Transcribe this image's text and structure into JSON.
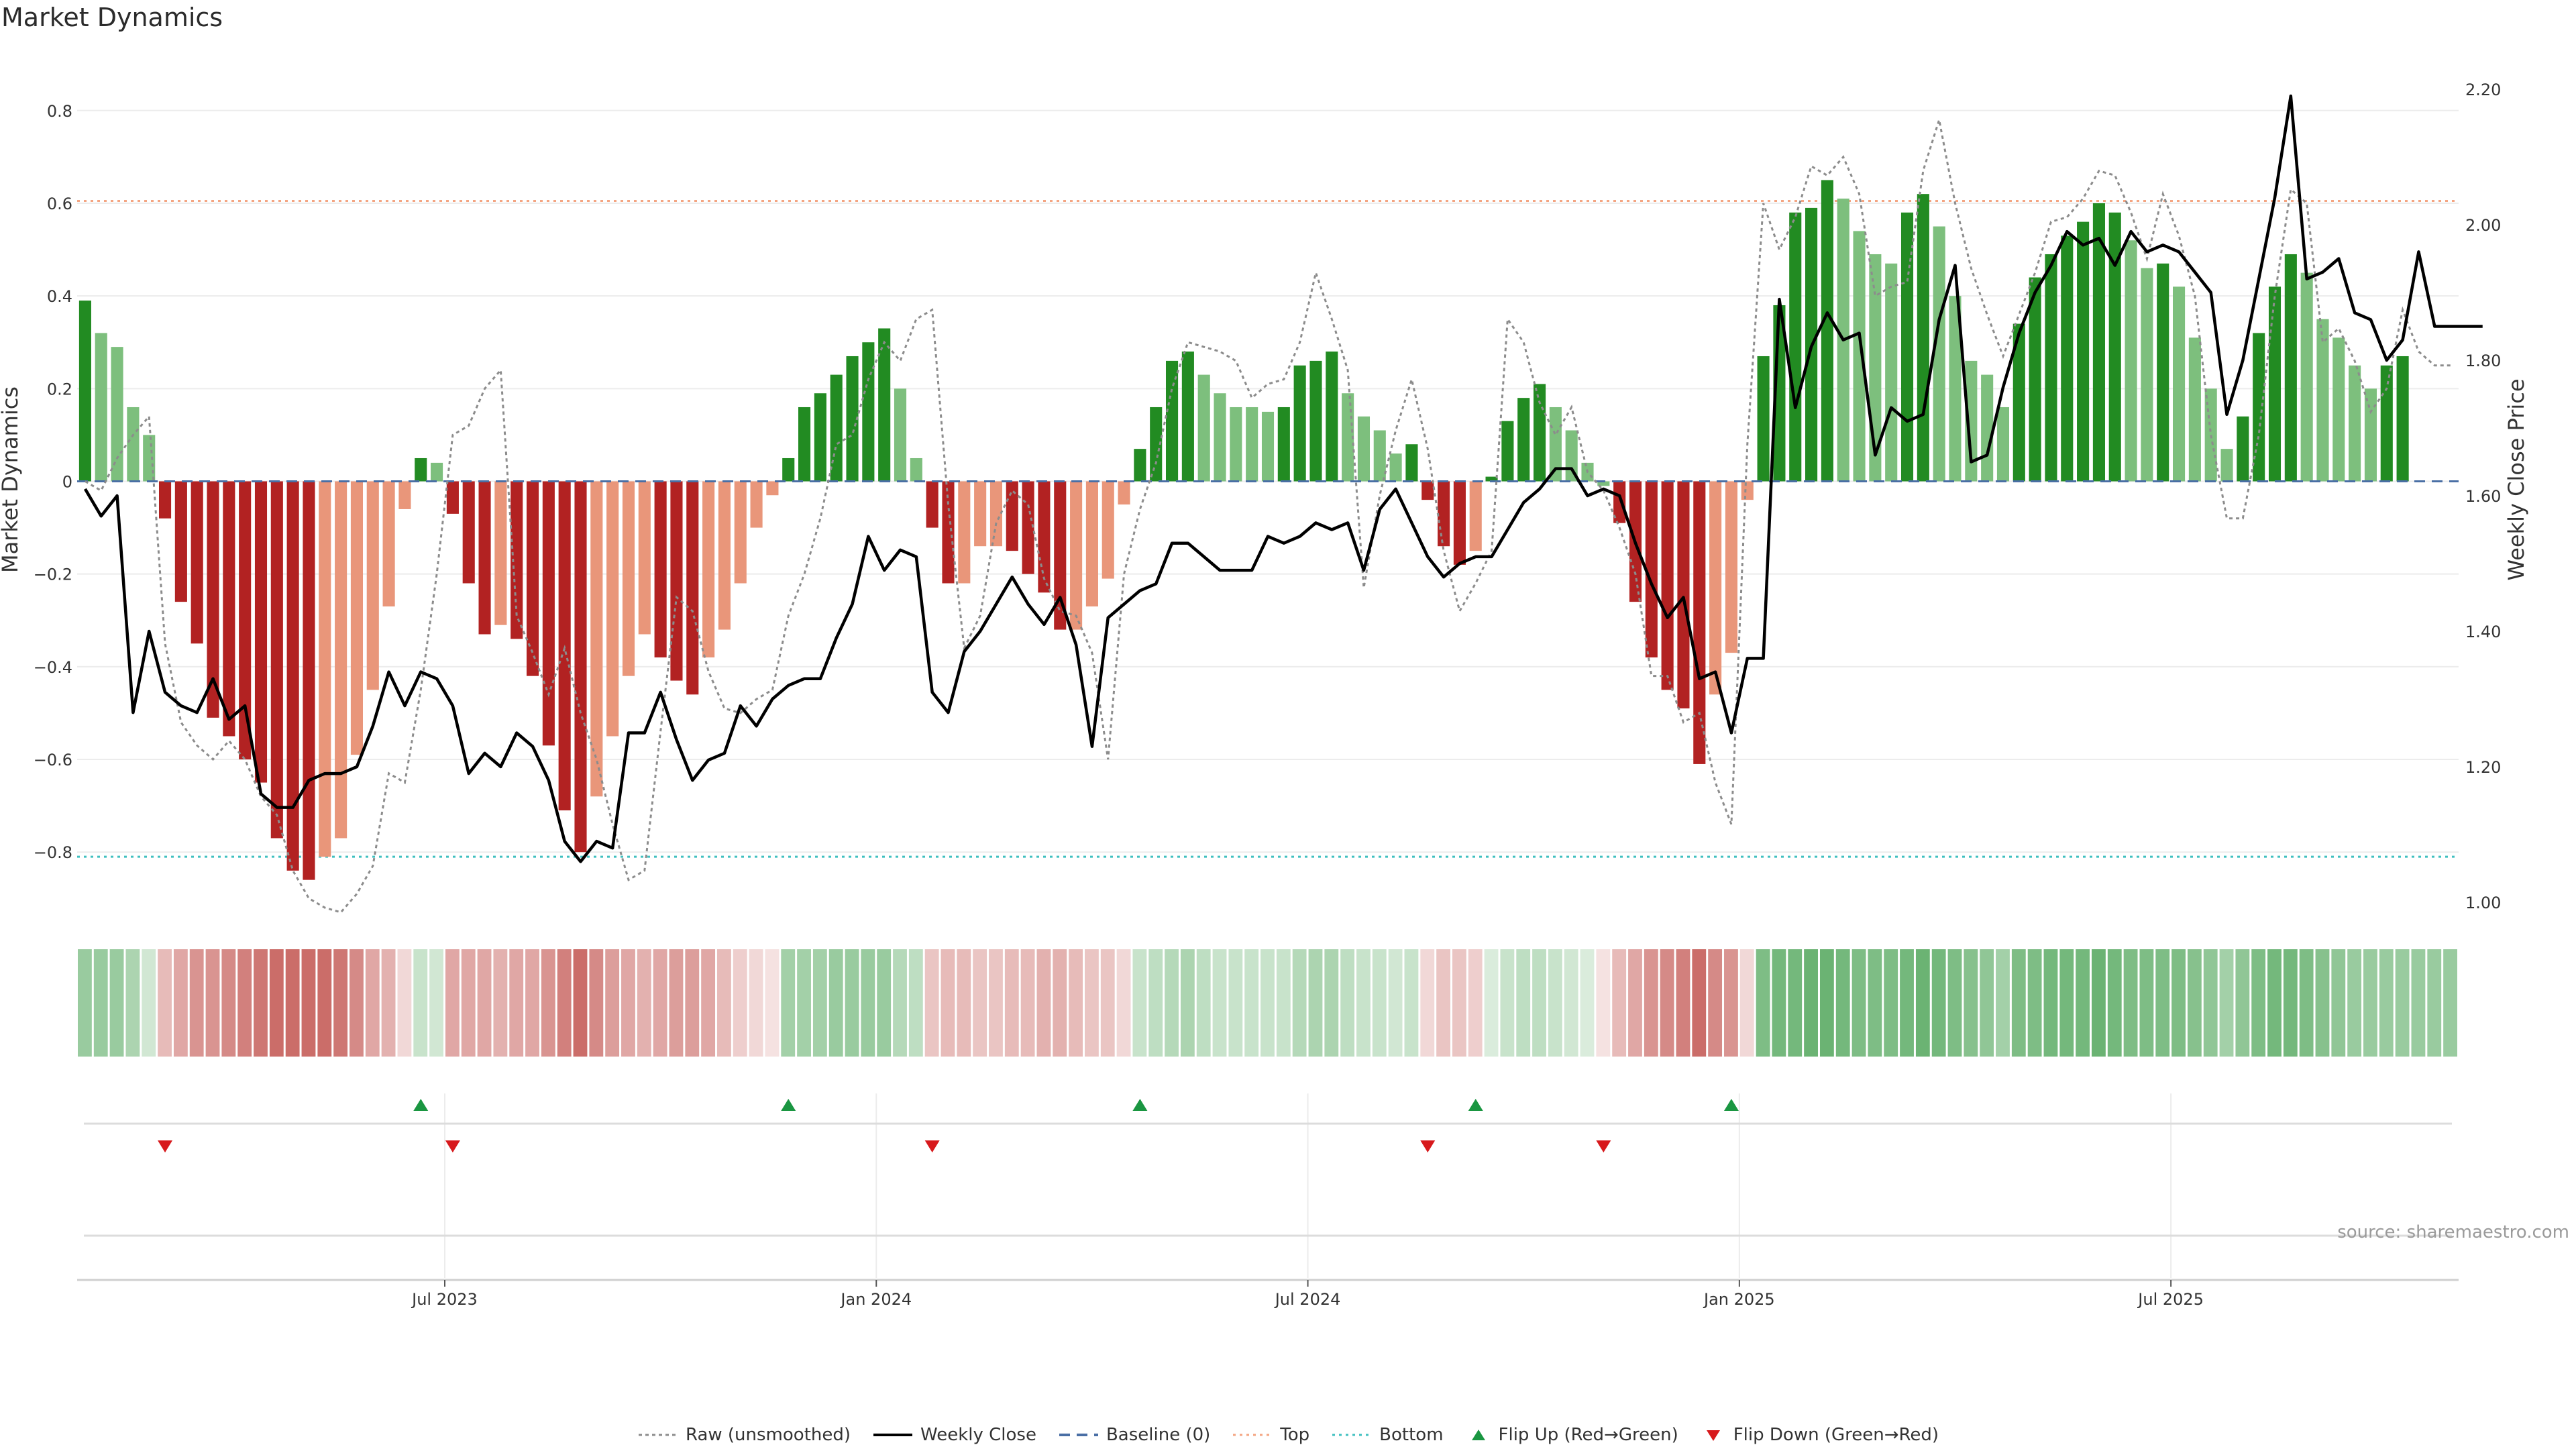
{
  "title": "Market Dynamics",
  "source": "source: sharemaestro.com",
  "colors": {
    "strong_green": "#228b22",
    "light_green": "#7dbf7d",
    "strong_red": "#b22222",
    "light_red": "#e9967a",
    "close_line": "#000000",
    "raw_line": "#8c8c8c",
    "top_line": "#f4a582",
    "bottom_line": "#40c0c0",
    "baseline": "#4a6fa5",
    "flip_up": "#1a9641",
    "flip_down": "#d7191c"
  },
  "legend": [
    {
      "label": "Raw (unsmoothed)",
      "icon": "dotted-gray-line"
    },
    {
      "label": "Weekly Close",
      "icon": "solid-black-line"
    },
    {
      "label": "Baseline (0)",
      "icon": "dashed-blue-line"
    },
    {
      "label": "Top",
      "icon": "dotted-orange-line"
    },
    {
      "label": "Bottom",
      "icon": "dotted-teal-line"
    },
    {
      "label": "Flip Up (Red→Green)",
      "icon": "triangle-up-green"
    },
    {
      "label": "Flip Down (Green→Red)",
      "icon": "triangle-down-red"
    }
  ],
  "chart_data": {
    "type": "bar",
    "title": "Market Dynamics",
    "ylabel": "Market Dynamics",
    "y2label": "Weekly Close Price",
    "ylim": [
      -0.93,
      0.93
    ],
    "y_ticks": [
      0.8,
      0.6,
      0.4,
      0.2,
      0,
      -0.2,
      -0.4,
      -0.6,
      -0.8
    ],
    "y_tick_labels": [
      "0.8",
      "0.6",
      "0.4",
      "0.2",
      "0",
      "−0.2",
      "−0.4",
      "−0.6",
      "−0.8"
    ],
    "y2lim": [
      1.0,
      2.2
    ],
    "y2_ticks": [
      2.2,
      2.0,
      1.8,
      1.6,
      1.4,
      1.2,
      1.0
    ],
    "y2_tick_labels": [
      "2.20",
      "2.00",
      "1.80",
      "1.60",
      "1.40",
      "1.20",
      "1.00"
    ],
    "x_ticks": [
      "Jul 2023",
      "Jan 2024",
      "Jul 2024",
      "Jan 2025",
      "Jul 2025"
    ],
    "x_tick_weeks": [
      22.5,
      49.5,
      76.5,
      103.5,
      130.5
    ],
    "top_level": 0.605,
    "bottom_level": -0.81,
    "baseline": 0,
    "grid": true,
    "legend_position": "bottom-center",
    "weeks": 149,
    "series": [
      {
        "name": "Market Dynamics",
        "values": [
          0.39,
          0.32,
          0.29,
          0.16,
          0.1,
          -0.08,
          -0.26,
          -0.35,
          -0.51,
          -0.55,
          -0.6,
          -0.65,
          -0.77,
          -0.84,
          -0.86,
          -0.81,
          -0.77,
          -0.59,
          -0.45,
          -0.27,
          -0.06,
          0.05,
          0.04,
          -0.07,
          -0.22,
          -0.33,
          -0.31,
          -0.34,
          -0.42,
          -0.57,
          -0.71,
          -0.8,
          -0.68,
          -0.55,
          -0.42,
          -0.33,
          -0.38,
          -0.43,
          -0.46,
          -0.38,
          -0.32,
          -0.22,
          -0.1,
          -0.03,
          0.05,
          0.16,
          0.19,
          0.23,
          0.27,
          0.3,
          0.33,
          0.2,
          0.05,
          -0.1,
          -0.22,
          -0.22,
          -0.14,
          -0.14,
          -0.15,
          -0.2,
          -0.24,
          -0.32,
          -0.32,
          -0.27,
          -0.21,
          -0.05,
          0.07,
          0.16,
          0.26,
          0.28,
          0.23,
          0.19,
          0.16,
          0.16,
          0.15,
          0.16,
          0.25,
          0.26,
          0.28,
          0.19,
          0.14,
          0.11,
          0.06,
          0.08,
          -0.04,
          -0.14,
          -0.18,
          -0.15,
          0.01,
          0.13,
          0.18,
          0.21,
          0.16,
          0.11,
          0.04,
          -0.01,
          -0.09,
          -0.26,
          -0.38,
          -0.45,
          -0.49,
          -0.61,
          -0.46,
          -0.37,
          -0.04,
          0.27,
          0.38,
          0.58,
          0.59,
          0.65,
          0.61,
          0.54,
          0.49,
          0.47,
          0.58,
          0.62,
          0.55,
          0.4,
          0.26,
          0.23,
          0.16,
          0.34,
          0.44,
          0.49,
          0.53,
          0.56,
          0.6,
          0.58,
          0.52,
          0.46,
          0.47,
          0.42,
          0.31,
          0.2,
          0.07,
          0.14,
          0.32,
          0.42,
          0.49,
          0.45,
          0.35,
          0.31,
          0.25,
          0.2,
          0.25,
          0.27,
          0.0,
          0.0,
          0.0
        ],
        "shades": [
          "g",
          "l",
          "l",
          "l",
          "l",
          "r",
          "r",
          "r",
          "r",
          "r",
          "r",
          "r",
          "r",
          "r",
          "r",
          "o",
          "o",
          "o",
          "o",
          "o",
          "o",
          "g",
          "l",
          "r",
          "r",
          "r",
          "o",
          "r",
          "r",
          "r",
          "r",
          "r",
          "o",
          "o",
          "o",
          "o",
          "r",
          "r",
          "r",
          "o",
          "o",
          "o",
          "o",
          "o",
          "g",
          "g",
          "g",
          "g",
          "g",
          "g",
          "g",
          "l",
          "l",
          "r",
          "r",
          "o",
          "o",
          "o",
          "r",
          "r",
          "r",
          "r",
          "o",
          "o",
          "o",
          "o",
          "g",
          "g",
          "g",
          "g",
          "l",
          "l",
          "l",
          "l",
          "l",
          "g",
          "g",
          "g",
          "g",
          "l",
          "l",
          "l",
          "l",
          "g",
          "r",
          "r",
          "r",
          "o",
          "g",
          "g",
          "g",
          "g",
          "l",
          "l",
          "l",
          "l",
          "r",
          "r",
          "r",
          "r",
          "r",
          "r",
          "o",
          "o",
          "o",
          "g",
          "g",
          "g",
          "g",
          "g",
          "l",
          "l",
          "l",
          "l",
          "g",
          "g",
          "l",
          "l",
          "l",
          "l",
          "l",
          "g",
          "g",
          "g",
          "g",
          "g",
          "g",
          "g",
          "l",
          "l",
          "g",
          "l",
          "l",
          "l",
          "l",
          "g",
          "g",
          "g",
          "g",
          "l",
          "l",
          "l",
          "l",
          "l",
          "g",
          "g",
          "g",
          "g",
          "g"
        ]
      },
      {
        "name": "Raw (unsmoothed)",
        "values": [
          0.0,
          -0.02,
          0.05,
          0.1,
          0.14,
          -0.35,
          -0.52,
          -0.57,
          -0.6,
          -0.56,
          -0.6,
          -0.68,
          -0.72,
          -0.84,
          -0.9,
          -0.92,
          -0.93,
          -0.89,
          -0.83,
          -0.63,
          -0.65,
          -0.45,
          -0.2,
          0.1,
          0.12,
          0.2,
          0.24,
          -0.29,
          -0.37,
          -0.46,
          -0.36,
          -0.5,
          -0.6,
          -0.74,
          -0.86,
          -0.84,
          -0.54,
          -0.25,
          -0.28,
          -0.41,
          -0.49,
          -0.5,
          -0.47,
          -0.45,
          -0.29,
          -0.2,
          -0.08,
          0.08,
          0.1,
          0.22,
          0.3,
          0.26,
          0.35,
          0.37,
          -0.05,
          -0.36,
          -0.29,
          -0.09,
          -0.02,
          -0.05,
          -0.21,
          -0.28,
          -0.29,
          -0.37,
          -0.6,
          -0.2,
          -0.06,
          0.04,
          0.2,
          0.3,
          0.29,
          0.28,
          0.26,
          0.18,
          0.21,
          0.22,
          0.3,
          0.45,
          0.35,
          0.24,
          -0.23,
          -0.03,
          0.11,
          0.22,
          0.07,
          -0.15,
          -0.28,
          -0.22,
          -0.15,
          0.35,
          0.3,
          0.17,
          0.1,
          0.16,
          0.02,
          -0.02,
          -0.1,
          -0.2,
          -0.42,
          -0.42,
          -0.52,
          -0.5,
          -0.65,
          -0.74,
          0.08,
          0.6,
          0.5,
          0.57,
          0.68,
          0.66,
          0.7,
          0.62,
          0.4,
          0.42,
          0.43,
          0.67,
          0.78,
          0.6,
          0.46,
          0.36,
          0.27,
          0.36,
          0.45,
          0.56,
          0.57,
          0.61,
          0.67,
          0.66,
          0.58,
          0.48,
          0.62,
          0.53,
          0.4,
          0.1,
          -0.08,
          -0.08,
          0.1,
          0.4,
          0.63,
          0.6,
          0.3,
          0.33,
          0.26,
          0.15,
          0.2,
          0.37,
          0.28,
          0.25,
          0.25
        ]
      },
      {
        "name": "Weekly Close",
        "values": [
          1.61,
          1.57,
          1.6,
          1.28,
          1.4,
          1.31,
          1.29,
          1.28,
          1.33,
          1.27,
          1.29,
          1.16,
          1.14,
          1.14,
          1.18,
          1.19,
          1.19,
          1.2,
          1.26,
          1.34,
          1.29,
          1.34,
          1.33,
          1.29,
          1.19,
          1.22,
          1.2,
          1.25,
          1.23,
          1.18,
          1.09,
          1.06,
          1.09,
          1.08,
          1.25,
          1.25,
          1.31,
          1.24,
          1.18,
          1.21,
          1.22,
          1.29,
          1.26,
          1.3,
          1.32,
          1.33,
          1.33,
          1.39,
          1.44,
          1.54,
          1.49,
          1.52,
          1.51,
          1.31,
          1.28,
          1.37,
          1.4,
          1.44,
          1.48,
          1.44,
          1.41,
          1.45,
          1.38,
          1.23,
          1.42,
          1.44,
          1.46,
          1.47,
          1.53,
          1.53,
          1.51,
          1.49,
          1.49,
          1.49,
          1.54,
          1.53,
          1.54,
          1.56,
          1.55,
          1.56,
          1.49,
          1.58,
          1.61,
          1.56,
          1.51,
          1.48,
          1.5,
          1.51,
          1.51,
          1.55,
          1.59,
          1.61,
          1.64,
          1.64,
          1.6,
          1.61,
          1.6,
          1.53,
          1.47,
          1.42,
          1.45,
          1.33,
          1.34,
          1.25,
          1.36,
          1.36,
          1.89,
          1.73,
          1.82,
          1.87,
          1.83,
          1.84,
          1.66,
          1.73,
          1.71,
          1.72,
          1.86,
          1.94,
          1.65,
          1.66,
          1.76,
          1.84,
          1.9,
          1.94,
          1.99,
          1.97,
          1.98,
          1.94,
          1.99,
          1.96,
          1.97,
          1.96,
          1.93,
          1.9,
          1.72,
          1.8,
          1.92,
          2.04,
          2.19,
          1.92,
          1.93,
          1.95,
          1.87,
          1.86,
          1.8,
          1.83,
          1.96,
          1.85,
          1.85,
          1.85,
          1.85
        ]
      }
    ],
    "flip_up_weeks": [
      21,
      44,
      66,
      87,
      103
    ],
    "flip_down_weeks": [
      5,
      23,
      53,
      84,
      95
    ],
    "heat_strip": [
      0.55,
      0.55,
      0.55,
      0.45,
      0.25,
      -0.35,
      -0.45,
      -0.55,
      -0.55,
      -0.6,
      -0.65,
      -0.7,
      -0.75,
      -0.75,
      -0.75,
      -0.75,
      -0.7,
      -0.6,
      -0.45,
      -0.4,
      -0.2,
      0.3,
      0.25,
      -0.45,
      -0.45,
      -0.45,
      -0.4,
      -0.45,
      -0.45,
      -0.55,
      -0.65,
      -0.75,
      -0.6,
      -0.5,
      -0.45,
      -0.4,
      -0.45,
      -0.5,
      -0.5,
      -0.45,
      -0.35,
      -0.25,
      -0.2,
      -0.15,
      0.5,
      0.5,
      0.5,
      0.55,
      0.55,
      0.55,
      0.55,
      0.4,
      0.35,
      -0.3,
      -0.35,
      -0.35,
      -0.3,
      -0.3,
      -0.35,
      -0.35,
      -0.4,
      -0.4,
      -0.35,
      -0.3,
      -0.3,
      -0.2,
      0.3,
      0.35,
      0.4,
      0.45,
      0.35,
      0.3,
      0.3,
      0.3,
      0.3,
      0.3,
      0.4,
      0.45,
      0.45,
      0.35,
      0.3,
      0.3,
      0.25,
      0.3,
      -0.2,
      -0.3,
      -0.3,
      -0.25,
      0.2,
      0.3,
      0.35,
      0.35,
      0.3,
      0.25,
      0.2,
      -0.15,
      -0.35,
      -0.45,
      -0.55,
      -0.6,
      -0.65,
      -0.75,
      -0.6,
      -0.55,
      -0.2,
      0.7,
      0.75,
      0.75,
      0.8,
      0.8,
      0.75,
      0.7,
      0.7,
      0.7,
      0.75,
      0.8,
      0.75,
      0.7,
      0.65,
      0.6,
      0.5,
      0.7,
      0.7,
      0.75,
      0.75,
      0.75,
      0.8,
      0.75,
      0.7,
      0.7,
      0.7,
      0.7,
      0.65,
      0.6,
      0.5,
      0.6,
      0.7,
      0.75,
      0.75,
      0.7,
      0.65,
      0.6,
      0.55,
      0.55,
      0.55,
      0.55,
      0.55,
      0.55,
      0.55
    ]
  }
}
